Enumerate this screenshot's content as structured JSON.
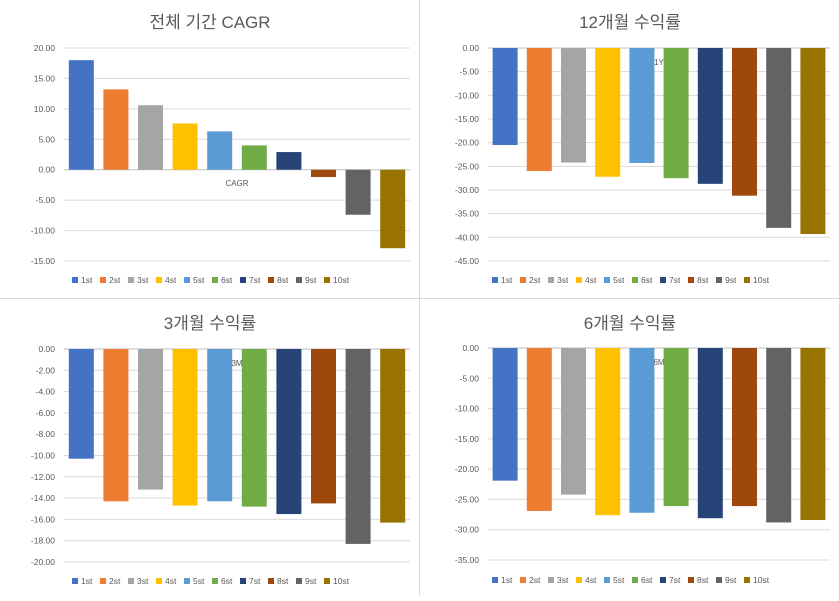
{
  "chart_data": [
    {
      "type": "bar",
      "title": "전체 기간 CAGR",
      "xlabel": "CAGR",
      "ylim": [
        -15,
        20
      ],
      "y_ticks": [
        "20.00",
        "15.00",
        "10.00",
        "5.00",
        "0.00",
        "-5.00",
        "-10.00",
        "-15.00"
      ],
      "y_tick_values": [
        20,
        15,
        10,
        5,
        0,
        -5,
        -10,
        -15
      ],
      "categories": [
        "1st",
        "2st",
        "3st",
        "4st",
        "5st",
        "6st",
        "7st",
        "8st",
        "9st",
        "10st"
      ],
      "values": [
        18.0,
        13.2,
        10.6,
        7.6,
        6.3,
        4.0,
        2.9,
        -1.2,
        -7.4,
        -12.9
      ],
      "legend_position": "bottom"
    },
    {
      "type": "bar",
      "title": "12개월 수익률",
      "xlabel": "1Y",
      "ylim": [
        -45,
        0
      ],
      "y_ticks": [
        "0.00",
        "-5.00",
        "-10.00",
        "-15.00",
        "-20.00",
        "-25.00",
        "-30.00",
        "-35.00",
        "-40.00",
        "-45.00"
      ],
      "y_tick_values": [
        0,
        -5,
        -10,
        -15,
        -20,
        -25,
        -30,
        -35,
        -40,
        -45
      ],
      "categories": [
        "1st",
        "2st",
        "3st",
        "4st",
        "5st",
        "6st",
        "7st",
        "8st",
        "9st",
        "10st"
      ],
      "values": [
        -20.5,
        -26.0,
        -24.2,
        -27.2,
        -24.3,
        -27.5,
        -28.7,
        -31.2,
        -38.0,
        -39.3
      ],
      "legend_position": "bottom"
    },
    {
      "type": "bar",
      "title": "3개월 수익률",
      "xlabel": "3M",
      "ylim": [
        -20,
        0
      ],
      "y_ticks": [
        "0.00",
        "-2.00",
        "-4.00",
        "-6.00",
        "-8.00",
        "-10.00",
        "-12.00",
        "-14.00",
        "-16.00",
        "-18.00",
        "-20.00"
      ],
      "y_tick_values": [
        0,
        -2,
        -4,
        -6,
        -8,
        -10,
        -12,
        -14,
        -16,
        -18,
        -20
      ],
      "categories": [
        "1st",
        "2st",
        "3st",
        "4st",
        "5st",
        "6st",
        "7st",
        "8st",
        "9st",
        "10st"
      ],
      "values": [
        -10.3,
        -14.3,
        -13.2,
        -14.7,
        -14.3,
        -14.8,
        -15.5,
        -14.5,
        -18.3,
        -16.3
      ],
      "legend_position": "bottom"
    },
    {
      "type": "bar",
      "title": "6개월 수익률",
      "xlabel": "6M",
      "ylim": [
        -35,
        0
      ],
      "y_ticks": [
        "0.00",
        "-5.00",
        "-10.00",
        "-15.00",
        "-20.00",
        "-25.00",
        "-30.00",
        "-35.00"
      ],
      "y_tick_values": [
        0,
        -5,
        -10,
        -15,
        -20,
        -25,
        -30,
        -35
      ],
      "categories": [
        "1st",
        "2st",
        "3st",
        "4st",
        "5st",
        "6st",
        "7st",
        "8st",
        "9st",
        "10st"
      ],
      "values": [
        -21.9,
        -26.9,
        -24.2,
        -27.6,
        -27.2,
        -26.1,
        -28.1,
        -26.1,
        -28.8,
        -28.4
      ],
      "legend_position": "bottom"
    }
  ],
  "colors": [
    "#4472C4",
    "#ED7D31",
    "#A5A5A5",
    "#FFC000",
    "#5B9BD5",
    "#70AD47",
    "#264478",
    "#9E480E",
    "#636363",
    "#997300"
  ],
  "grid": true
}
